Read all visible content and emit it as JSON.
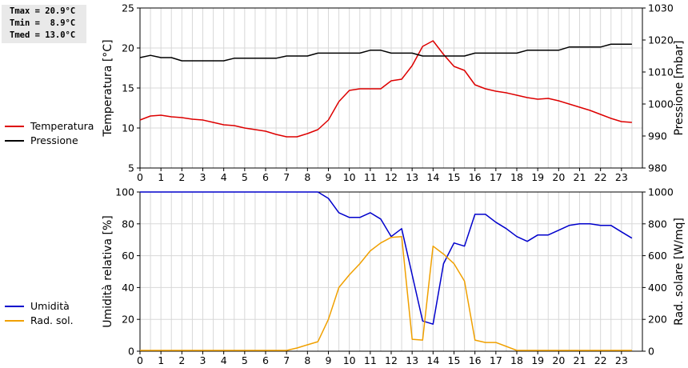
{
  "stats": [
    {
      "label": "Tmax",
      "value": "20.9°C"
    },
    {
      "label": "Tmin",
      "value": " 8.9°C"
    },
    {
      "label": "Tmed",
      "value": "13.0°C"
    }
  ],
  "colors": {
    "temperatura": "#dd0000",
    "pressione": "#000000",
    "umidita": "#0000cc",
    "radsol": "#f0a000",
    "grid": "#d8d8d8",
    "stats_bg": "#e9e9e9"
  },
  "chart_data": [
    {
      "type": "line",
      "x_ticks": [
        "0",
        "1",
        "2",
        "3",
        "4",
        "5",
        "6",
        "7",
        "8",
        "9",
        "10",
        "11",
        "12",
        "13",
        "14",
        "15",
        "16",
        "17",
        "18",
        "19",
        "20",
        "21",
        "22",
        "23"
      ],
      "xlim": [
        0,
        24
      ],
      "ylabel_left": "Temperatura [°C]",
      "ylabel_right": "Pressione [mbar]",
      "ylim_left": [
        5,
        25
      ],
      "ylim_right": [
        980,
        1030
      ],
      "y_ticks_left": [
        "5",
        "10",
        "15",
        "20",
        "25"
      ],
      "y_ticks_right": [
        "980",
        "990",
        "1000",
        "1010",
        "1020",
        "1030"
      ],
      "grid": true,
      "series": [
        {
          "name": "Temperatura",
          "axis": "left",
          "color": "#dd0000",
          "x": [
            0,
            0.5,
            1,
            1.5,
            2,
            2.5,
            3,
            3.5,
            4,
            4.5,
            5,
            5.5,
            6,
            6.5,
            7,
            7.5,
            8,
            8.5,
            9,
            9.5,
            10,
            10.5,
            11,
            11.5,
            12,
            12.5,
            13,
            13.5,
            14,
            14.5,
            15,
            15.5,
            16,
            16.5,
            17,
            17.5,
            18,
            18.5,
            19,
            19.5,
            20,
            20.5,
            21,
            21.5,
            22,
            22.5,
            23,
            23.5
          ],
          "values": [
            11.0,
            11.5,
            11.6,
            11.4,
            11.3,
            11.1,
            11.0,
            10.7,
            10.4,
            10.3,
            10.0,
            9.8,
            9.6,
            9.2,
            8.9,
            8.9,
            9.3,
            9.8,
            11.0,
            13.3,
            14.7,
            14.9,
            14.9,
            14.9,
            15.9,
            16.1,
            17.8,
            20.2,
            20.9,
            19.2,
            17.7,
            17.2,
            15.4,
            14.9,
            14.6,
            14.4,
            14.1,
            13.8,
            13.6,
            13.7,
            13.4,
            13.0,
            12.6,
            12.2,
            11.7,
            11.2,
            10.8,
            10.7
          ]
        },
        {
          "name": "Pressione",
          "axis": "right",
          "color": "#000000",
          "x": [
            0,
            0.5,
            1,
            1.5,
            2,
            2.5,
            3,
            3.5,
            4,
            4.5,
            5,
            5.5,
            6,
            6.5,
            7,
            7.5,
            8,
            8.5,
            9,
            9.5,
            10,
            10.5,
            11,
            11.5,
            12,
            12.5,
            13,
            13.5,
            14,
            14.5,
            15,
            15.5,
            16,
            16.5,
            17,
            17.5,
            18,
            18.5,
            19,
            19.5,
            20,
            20.5,
            21,
            21.5,
            22,
            22.5,
            23,
            23.5
          ],
          "values": [
            1014.5,
            1015.2,
            1014.5,
            1014.5,
            1013.5,
            1013.5,
            1013.5,
            1013.5,
            1013.5,
            1014.3,
            1014.3,
            1014.3,
            1014.3,
            1014.3,
            1015.0,
            1015.0,
            1015.0,
            1015.9,
            1015.9,
            1015.9,
            1015.9,
            1015.9,
            1016.8,
            1016.8,
            1015.9,
            1015.9,
            1015.9,
            1015.0,
            1015.0,
            1015.0,
            1015.0,
            1015.0,
            1015.9,
            1015.9,
            1015.9,
            1015.9,
            1015.9,
            1016.8,
            1016.8,
            1016.8,
            1016.8,
            1017.8,
            1017.8,
            1017.8,
            1017.8,
            1018.7,
            1018.7,
            1018.7
          ]
        }
      ]
    },
    {
      "type": "line",
      "x_ticks": [
        "0",
        "1",
        "2",
        "3",
        "4",
        "5",
        "6",
        "7",
        "8",
        "9",
        "10",
        "11",
        "12",
        "13",
        "14",
        "15",
        "16",
        "17",
        "18",
        "19",
        "20",
        "21",
        "22",
        "23"
      ],
      "xlim": [
        0,
        24
      ],
      "ylabel_left": "Umidità relativa [%]",
      "ylabel_right": "Rad. solare [W/mq]",
      "ylim_left": [
        0,
        100
      ],
      "ylim_right": [
        0,
        1000
      ],
      "y_ticks_left": [
        "0",
        "20",
        "40",
        "60",
        "80",
        "100"
      ],
      "y_ticks_right": [
        "0",
        "200",
        "400",
        "600",
        "800",
        "1000"
      ],
      "grid": true,
      "series": [
        {
          "name": "Umidità",
          "axis": "left",
          "color": "#0000cc",
          "x": [
            0,
            0.5,
            1,
            1.5,
            2,
            2.5,
            3,
            3.5,
            4,
            4.5,
            5,
            5.5,
            6,
            6.5,
            7,
            7.5,
            8,
            8.5,
            9,
            9.5,
            10,
            10.5,
            11,
            11.5,
            12,
            12.5,
            13,
            13.5,
            14,
            14.5,
            15,
            15.5,
            16,
            16.5,
            17,
            17.5,
            18,
            18.5,
            19,
            19.5,
            20,
            20.5,
            21,
            21.5,
            22,
            22.5,
            23,
            23.5
          ],
          "values": [
            100,
            100,
            100,
            100,
            100,
            100,
            100,
            100,
            100,
            100,
            100,
            100,
            100,
            100,
            100,
            100,
            100,
            100,
            96,
            87,
            84,
            84,
            87,
            83,
            72,
            77,
            48,
            19,
            17,
            55,
            68,
            66,
            86,
            86,
            81,
            77,
            72,
            69,
            73,
            73,
            76,
            79,
            80,
            80,
            79,
            79,
            75,
            71
          ]
        },
        {
          "name": "Rad. sol.",
          "axis": "right",
          "color": "#f0a000",
          "x": [
            0,
            0.5,
            1,
            1.5,
            2,
            2.5,
            3,
            3.5,
            4,
            4.5,
            5,
            5.5,
            6,
            6.5,
            7,
            7.5,
            8,
            8.5,
            9,
            9.5,
            10,
            10.5,
            11,
            11.5,
            12,
            12.5,
            13,
            13.5,
            14,
            14.5,
            15,
            15.5,
            16,
            16.5,
            17,
            17.5,
            18,
            18.5,
            19,
            19.5,
            20,
            20.5,
            21,
            21.5,
            22,
            22.5,
            23,
            23.5
          ],
          "values": [
            5,
            5,
            5,
            5,
            5,
            5,
            5,
            5,
            5,
            5,
            5,
            5,
            5,
            5,
            5,
            20,
            40,
            60,
            200,
            400,
            480,
            550,
            630,
            680,
            715,
            720,
            75,
            70,
            660,
            610,
            550,
            440,
            70,
            55,
            55,
            30,
            5,
            5,
            5,
            5,
            5,
            5,
            5,
            5,
            5,
            5,
            5,
            5
          ]
        }
      ]
    }
  ]
}
